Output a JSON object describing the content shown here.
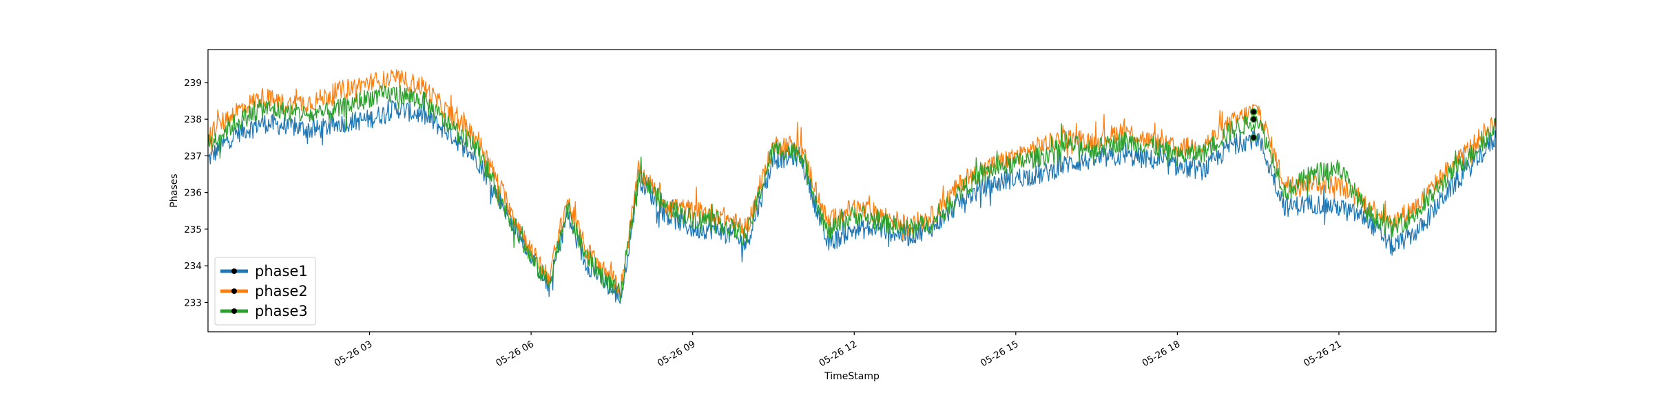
{
  "chart_data": {
    "type": "line",
    "title": "",
    "xlabel": "TimeStamp",
    "ylabel": "Phases",
    "xlim": [
      "2023-05-26 00:00",
      "2023-05-26 23:55"
    ],
    "ylim": [
      232.2,
      239.9
    ],
    "x_ticks": [
      {
        "value": "2023-05-26 03:00",
        "label": "05-26 03"
      },
      {
        "value": "2023-05-26 06:00",
        "label": "05-26 06"
      },
      {
        "value": "2023-05-26 09:00",
        "label": "05-26 09"
      },
      {
        "value": "2023-05-26 12:00",
        "label": "05-26 12"
      },
      {
        "value": "2023-05-26 15:00",
        "label": "05-26 15"
      },
      {
        "value": "2023-05-26 18:00",
        "label": "05-26 18"
      },
      {
        "value": "2023-05-26 21:00",
        "label": "05-26 21"
      }
    ],
    "y_ticks": [
      233,
      234,
      235,
      236,
      237,
      238,
      239
    ],
    "grid": false,
    "legend_position": "lower-left",
    "x": [
      "2023-05-26 00:00",
      "2023-05-26 00:30",
      "2023-05-26 01:00",
      "2023-05-26 01:30",
      "2023-05-26 02:00",
      "2023-05-26 02:30",
      "2023-05-26 03:00",
      "2023-05-26 03:30",
      "2023-05-26 04:00",
      "2023-05-26 04:30",
      "2023-05-26 05:00",
      "2023-05-26 05:30",
      "2023-05-26 06:00",
      "2023-05-26 06:20",
      "2023-05-26 06:40",
      "2023-05-26 07:00",
      "2023-05-26 07:20",
      "2023-05-26 07:40",
      "2023-05-26 08:00",
      "2023-05-26 08:30",
      "2023-05-26 09:00",
      "2023-05-26 09:30",
      "2023-05-26 10:00",
      "2023-05-26 10:30",
      "2023-05-26 11:00",
      "2023-05-26 11:30",
      "2023-05-26 12:00",
      "2023-05-26 12:30",
      "2023-05-26 13:00",
      "2023-05-26 13:30",
      "2023-05-26 14:00",
      "2023-05-26 14:30",
      "2023-05-26 15:00",
      "2023-05-26 15:30",
      "2023-05-26 16:00",
      "2023-05-26 16:30",
      "2023-05-26 17:00",
      "2023-05-26 17:30",
      "2023-05-26 18:00",
      "2023-05-26 18:30",
      "2023-05-26 19:00",
      "2023-05-26 19:30",
      "2023-05-26 20:00",
      "2023-05-26 20:30",
      "2023-05-26 21:00",
      "2023-05-26 21:30",
      "2023-05-26 22:00",
      "2023-05-26 22:30",
      "2023-05-26 23:00",
      "2023-05-26 23:30",
      "2023-05-26 23:55"
    ],
    "series": [
      {
        "name": "phase1",
        "color": "#1f77b4",
        "values": [
          236.9,
          237.6,
          237.9,
          237.8,
          237.7,
          237.9,
          238.0,
          238.3,
          238.1,
          237.6,
          236.9,
          235.6,
          234.3,
          233.4,
          235.4,
          234.1,
          233.6,
          233.1,
          236.4,
          235.4,
          235.0,
          235.0,
          234.6,
          236.9,
          237.0,
          234.6,
          235.0,
          235.0,
          234.8,
          235.1,
          235.8,
          236.2,
          236.4,
          236.5,
          236.8,
          236.9,
          237.0,
          236.9,
          236.7,
          236.6,
          237.3,
          237.5,
          235.6,
          235.7,
          235.6,
          235.3,
          234.5,
          235.0,
          236.0,
          236.8,
          237.5
        ]
      },
      {
        "name": "phase2",
        "color": "#ff7f0e",
        "values": [
          237.6,
          238.2,
          238.6,
          238.4,
          238.5,
          238.8,
          239.0,
          239.1,
          238.9,
          238.1,
          237.5,
          235.9,
          234.4,
          233.7,
          235.8,
          234.5,
          233.9,
          233.4,
          236.6,
          235.7,
          235.5,
          235.4,
          235.0,
          237.3,
          237.3,
          235.2,
          235.6,
          235.4,
          235.1,
          235.4,
          236.3,
          236.7,
          237.0,
          237.3,
          237.5,
          237.4,
          237.7,
          237.4,
          237.2,
          237.3,
          237.9,
          238.3,
          236.2,
          236.3,
          236.2,
          235.7,
          235.2,
          235.7,
          236.6,
          237.3,
          238.0
        ]
      },
      {
        "name": "phase3",
        "color": "#2ca02c",
        "values": [
          237.3,
          237.9,
          238.3,
          238.2,
          238.1,
          238.3,
          238.6,
          238.7,
          238.5,
          237.8,
          237.2,
          235.6,
          234.2,
          233.5,
          235.6,
          234.3,
          233.7,
          233.2,
          236.5,
          235.6,
          235.3,
          235.2,
          234.8,
          237.2,
          237.1,
          234.9,
          235.4,
          235.2,
          235.0,
          235.2,
          236.1,
          236.6,
          236.8,
          237.0,
          237.3,
          237.2,
          237.4,
          237.3,
          237.0,
          237.1,
          237.7,
          238.0,
          236.0,
          236.5,
          236.7,
          235.5,
          235.0,
          235.5,
          236.4,
          237.1,
          237.8
        ]
      }
    ],
    "markers": [
      {
        "x": "2023-05-26 19:25",
        "y": 237.5
      },
      {
        "x": "2023-05-26 19:25",
        "y": 238.0
      },
      {
        "x": "2023-05-26 19:25",
        "y": 238.2
      }
    ]
  }
}
